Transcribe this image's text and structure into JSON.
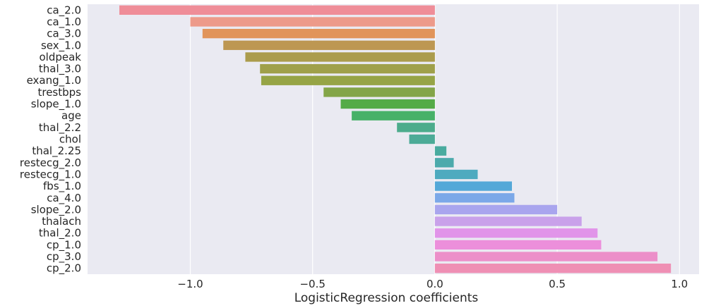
{
  "chart_data": {
    "type": "bar",
    "orientation": "horizontal",
    "xlabel": "LogisticRegression coefficients",
    "ylabel": "",
    "xlim": [
      -1.42,
      1.08
    ],
    "xticks": [
      -1.0,
      -0.5,
      0.0,
      0.5,
      1.0
    ],
    "xtick_labels": [
      "−1.0",
      "−0.5",
      "0.0",
      "0.5",
      "1.0"
    ],
    "grid": true,
    "background_color": "#eaeaf2",
    "categories": [
      "ca_2.0",
      "ca_1.0",
      "ca_3.0",
      "sex_1.0",
      "oldpeak",
      "thal_3.0",
      "exang_1.0",
      "trestbps",
      "slope_1.0",
      "age",
      "thal_2.2",
      "chol",
      "thal_2.25",
      "restecg_2.0",
      "restecg_1.0",
      "fbs_1.0",
      "ca_4.0",
      "slope_2.0",
      "thalach",
      "thal_2.0",
      "cp_1.0",
      "cp_3.0",
      "cp_2.0"
    ],
    "values": [
      -1.29,
      -1.0,
      -0.95,
      -0.865,
      -0.775,
      -0.715,
      -0.71,
      -0.455,
      -0.385,
      -0.34,
      -0.155,
      -0.105,
      0.047,
      0.077,
      0.175,
      0.315,
      0.325,
      0.5,
      0.6,
      0.665,
      0.68,
      0.91,
      0.965
    ],
    "colors": [
      "#ef8d98",
      "#ed9a8a",
      "#e1945a",
      "#bd9752",
      "#ab9c4c",
      "#9fa04a",
      "#96a446",
      "#83a548",
      "#54ab47",
      "#47b168",
      "#4cac8c",
      "#4cab97",
      "#49ab9f",
      "#4caaac",
      "#4eaabf",
      "#54a8d8",
      "#7ba8e8",
      "#a9a5ee",
      "#c9a1ea",
      "#e194e9",
      "#ec8fdb",
      "#ec8fc9",
      "#ef8fb4"
    ]
  }
}
